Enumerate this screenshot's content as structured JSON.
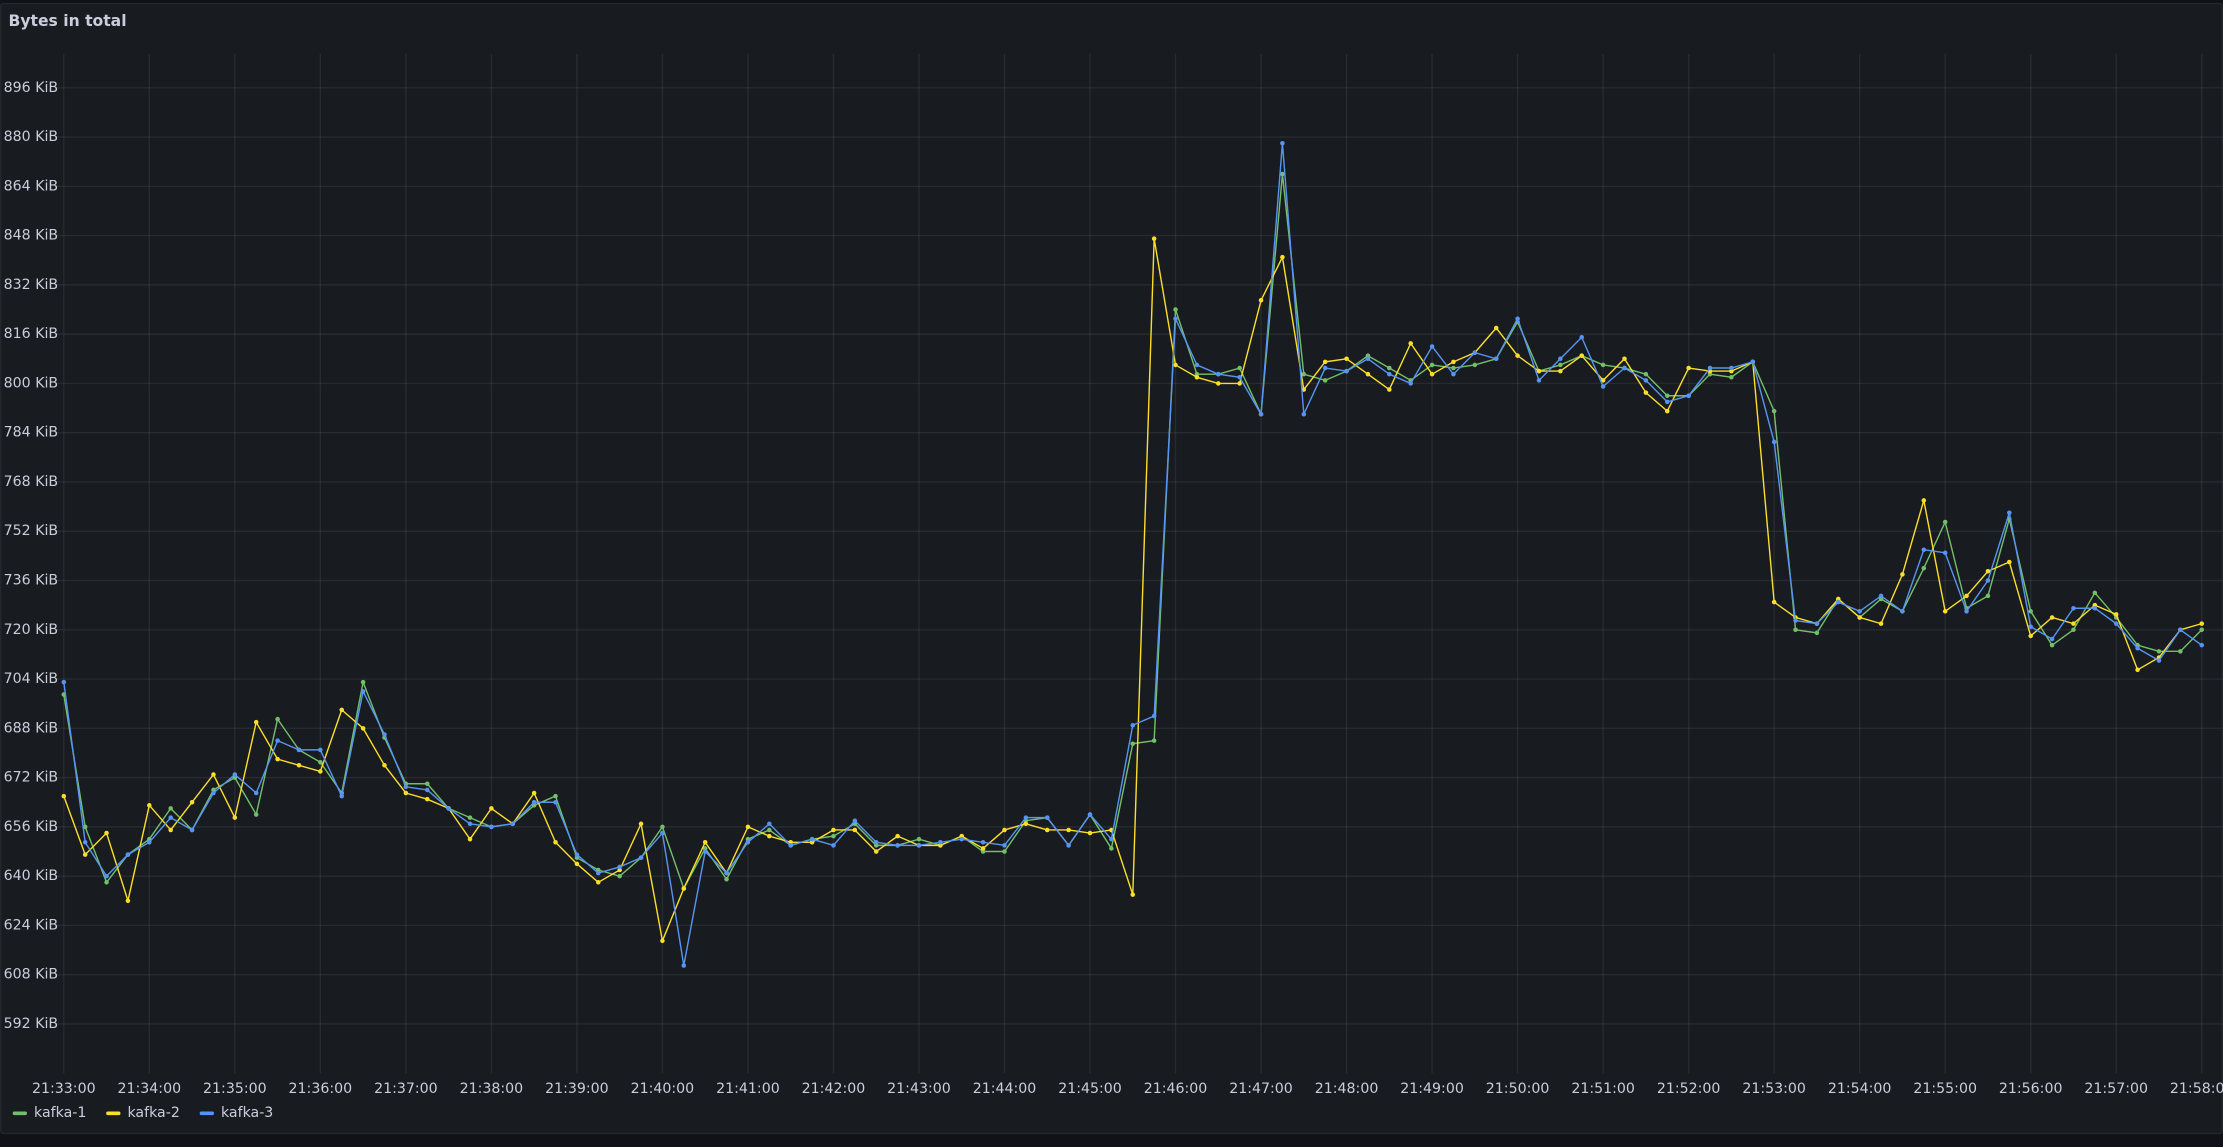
{
  "chart_data": {
    "type": "line",
    "title": "Bytes in total",
    "categories": [
      "21:33:00",
      null,
      null,
      null,
      "21:34:00",
      null,
      null,
      null,
      "21:35:00",
      null,
      null,
      null,
      "21:36:00",
      null,
      null,
      null,
      "21:37:00",
      null,
      null,
      null,
      "21:38:00",
      null,
      null,
      null,
      "21:39:00",
      null,
      null,
      null,
      "21:40:00",
      null,
      null,
      null,
      "21:41:00",
      null,
      null,
      null,
      "21:42:00",
      null,
      null,
      null,
      "21:43:00",
      null,
      null,
      null,
      "21:44:00",
      null,
      null,
      null,
      "21:45:00",
      null,
      null,
      null,
      "21:46:00",
      null,
      null,
      null,
      "21:47:00",
      null,
      null,
      null,
      "21:48:00",
      null,
      null,
      null,
      "21:49:00",
      null,
      null,
      null,
      "21:50:00",
      null,
      null,
      null,
      "21:51:00",
      null,
      null,
      null,
      "21:52:00",
      null,
      null,
      null,
      "21:53:00",
      null,
      null,
      null,
      "21:54:00",
      null,
      null,
      null,
      "21:55:00",
      null,
      null,
      null,
      "21:56:00",
      null,
      null,
      null,
      "21:57:00",
      null,
      null,
      null,
      "21:58:00"
    ],
    "series": [
      {
        "name": "kafka-1",
        "color": "#73bf69",
        "values": [
          699,
          656,
          638,
          647,
          652,
          662,
          655,
          668,
          672,
          660,
          691,
          681,
          677,
          667,
          703,
          685,
          670,
          670,
          662,
          659,
          656,
          657,
          663,
          666,
          646,
          642,
          640,
          646,
          656,
          636,
          649,
          639,
          652,
          655,
          650,
          652,
          653,
          657,
          650,
          650,
          652,
          650,
          653,
          648,
          648,
          658,
          659,
          650,
          660,
          649,
          683,
          684,
          824,
          803,
          803,
          805,
          790,
          868,
          803,
          801,
          804,
          809,
          805,
          801,
          806,
          805,
          806,
          808,
          820,
          804,
          806,
          809,
          806,
          805,
          803,
          796,
          796,
          803,
          802,
          807,
          791,
          720,
          719,
          730,
          724,
          730,
          726,
          740,
          755,
          727,
          731,
          756,
          726,
          715,
          720,
          732,
          724,
          715,
          713,
          713,
          720
        ]
      },
      {
        "name": "kafka-2",
        "color": "#fade2a",
        "values": [
          666,
          647,
          654,
          632,
          663,
          655,
          664,
          673,
          659,
          690,
          678,
          676,
          674,
          694,
          688,
          676,
          667,
          665,
          662,
          652,
          662,
          657,
          667,
          651,
          644,
          638,
          642,
          657,
          619,
          636,
          651,
          641,
          656,
          653,
          651,
          651,
          655,
          655,
          648,
          653,
          650,
          650,
          653,
          649,
          655,
          657,
          655,
          655,
          654,
          655,
          634,
          847,
          806,
          802,
          800,
          800,
          827,
          841,
          798,
          807,
          808,
          803,
          798,
          813,
          803,
          807,
          810,
          818,
          809,
          804,
          804,
          809,
          801,
          808,
          797,
          791,
          805,
          804,
          804,
          807,
          729,
          724,
          722,
          730,
          724,
          722,
          738,
          762,
          726,
          731,
          739,
          742,
          718,
          724,
          722,
          728,
          725,
          707,
          711,
          720,
          722
        ]
      },
      {
        "name": "kafka-3",
        "color": "#5794f2",
        "values": [
          703,
          651,
          640,
          647,
          651,
          659,
          655,
          667,
          673,
          667,
          684,
          681,
          681,
          666,
          700,
          686,
          669,
          668,
          662,
          657,
          656,
          657,
          664,
          664,
          647,
          641,
          643,
          646,
          654,
          611,
          648,
          641,
          651,
          657,
          650,
          652,
          650,
          658,
          651,
          650,
          650,
          651,
          652,
          651,
          650,
          659,
          659,
          650,
          660,
          652,
          689,
          692,
          821,
          806,
          803,
          802,
          790,
          878,
          790,
          805,
          804,
          808,
          803,
          800,
          812,
          803,
          810,
          808,
          821,
          801,
          808,
          815,
          799,
          805,
          801,
          794,
          796,
          805,
          805,
          807,
          781,
          723,
          722,
          729,
          726,
          731,
          726,
          746,
          745,
          726,
          736,
          758,
          721,
          717,
          727,
          727,
          722,
          714,
          710,
          720,
          715
        ]
      }
    ],
    "ylim": [
      576,
      907
    ],
    "yticks": [
      {
        "value": 592,
        "label": "592 KiB"
      },
      {
        "value": 608,
        "label": "608 KiB"
      },
      {
        "value": 624,
        "label": "624 KiB"
      },
      {
        "value": 640,
        "label": "640 KiB"
      },
      {
        "value": 656,
        "label": "656 KiB"
      },
      {
        "value": 672,
        "label": "672 KiB"
      },
      {
        "value": 688,
        "label": "688 KiB"
      },
      {
        "value": 704,
        "label": "704 KiB"
      },
      {
        "value": 720,
        "label": "720 KiB"
      },
      {
        "value": 736,
        "label": "736 KiB"
      },
      {
        "value": 752,
        "label": "752 KiB"
      },
      {
        "value": 768,
        "label": "768 KiB"
      },
      {
        "value": 784,
        "label": "784 KiB"
      },
      {
        "value": 800,
        "label": "800 KiB"
      },
      {
        "value": 816,
        "label": "816 KiB"
      },
      {
        "value": 832,
        "label": "832 KiB"
      },
      {
        "value": 848,
        "label": "848 KiB"
      },
      {
        "value": 864,
        "label": "864 KiB"
      },
      {
        "value": 880,
        "label": "880 KiB"
      },
      {
        "value": 896,
        "label": "896 KiB"
      }
    ],
    "grid": true,
    "legend": "bottom-left"
  }
}
